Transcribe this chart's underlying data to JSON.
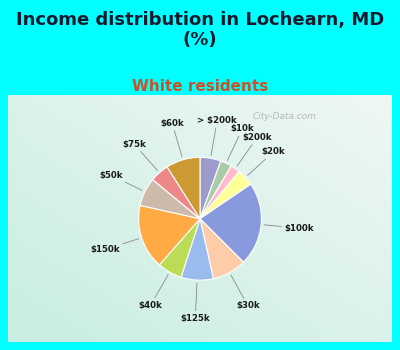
{
  "title": "Income distribution in Lochearn, MD\n(%)",
  "subtitle": "White residents",
  "title_fontsize": 13,
  "subtitle_fontsize": 11,
  "title_color": "#1a1a2e",
  "subtitle_color": "#c8522a",
  "bg_color": "#00ffff",
  "chart_bg_top": "#d8f0e8",
  "chart_bg_bottom": "#e8f8f0",
  "labels": [
    "> $200k",
    "$10k",
    "$200k",
    "$20k",
    "$100k",
    "$30k",
    "$125k",
    "$40k",
    "$150k",
    "$50k",
    "$75k",
    "$60k"
  ],
  "sizes": [
    5.5,
    3.0,
    2.5,
    4.5,
    22.0,
    9.0,
    8.5,
    6.5,
    17.0,
    7.5,
    5.0,
    9.0
  ],
  "colors": [
    "#9b9bcc",
    "#aaccaa",
    "#ffbbcc",
    "#ffff99",
    "#8899dd",
    "#ffccaa",
    "#99bbee",
    "#bbdd55",
    "#ffaa44",
    "#ccbbaa",
    "#ee8888",
    "#cc9933"
  ],
  "watermark": "City-Data.com",
  "startangle": 90
}
